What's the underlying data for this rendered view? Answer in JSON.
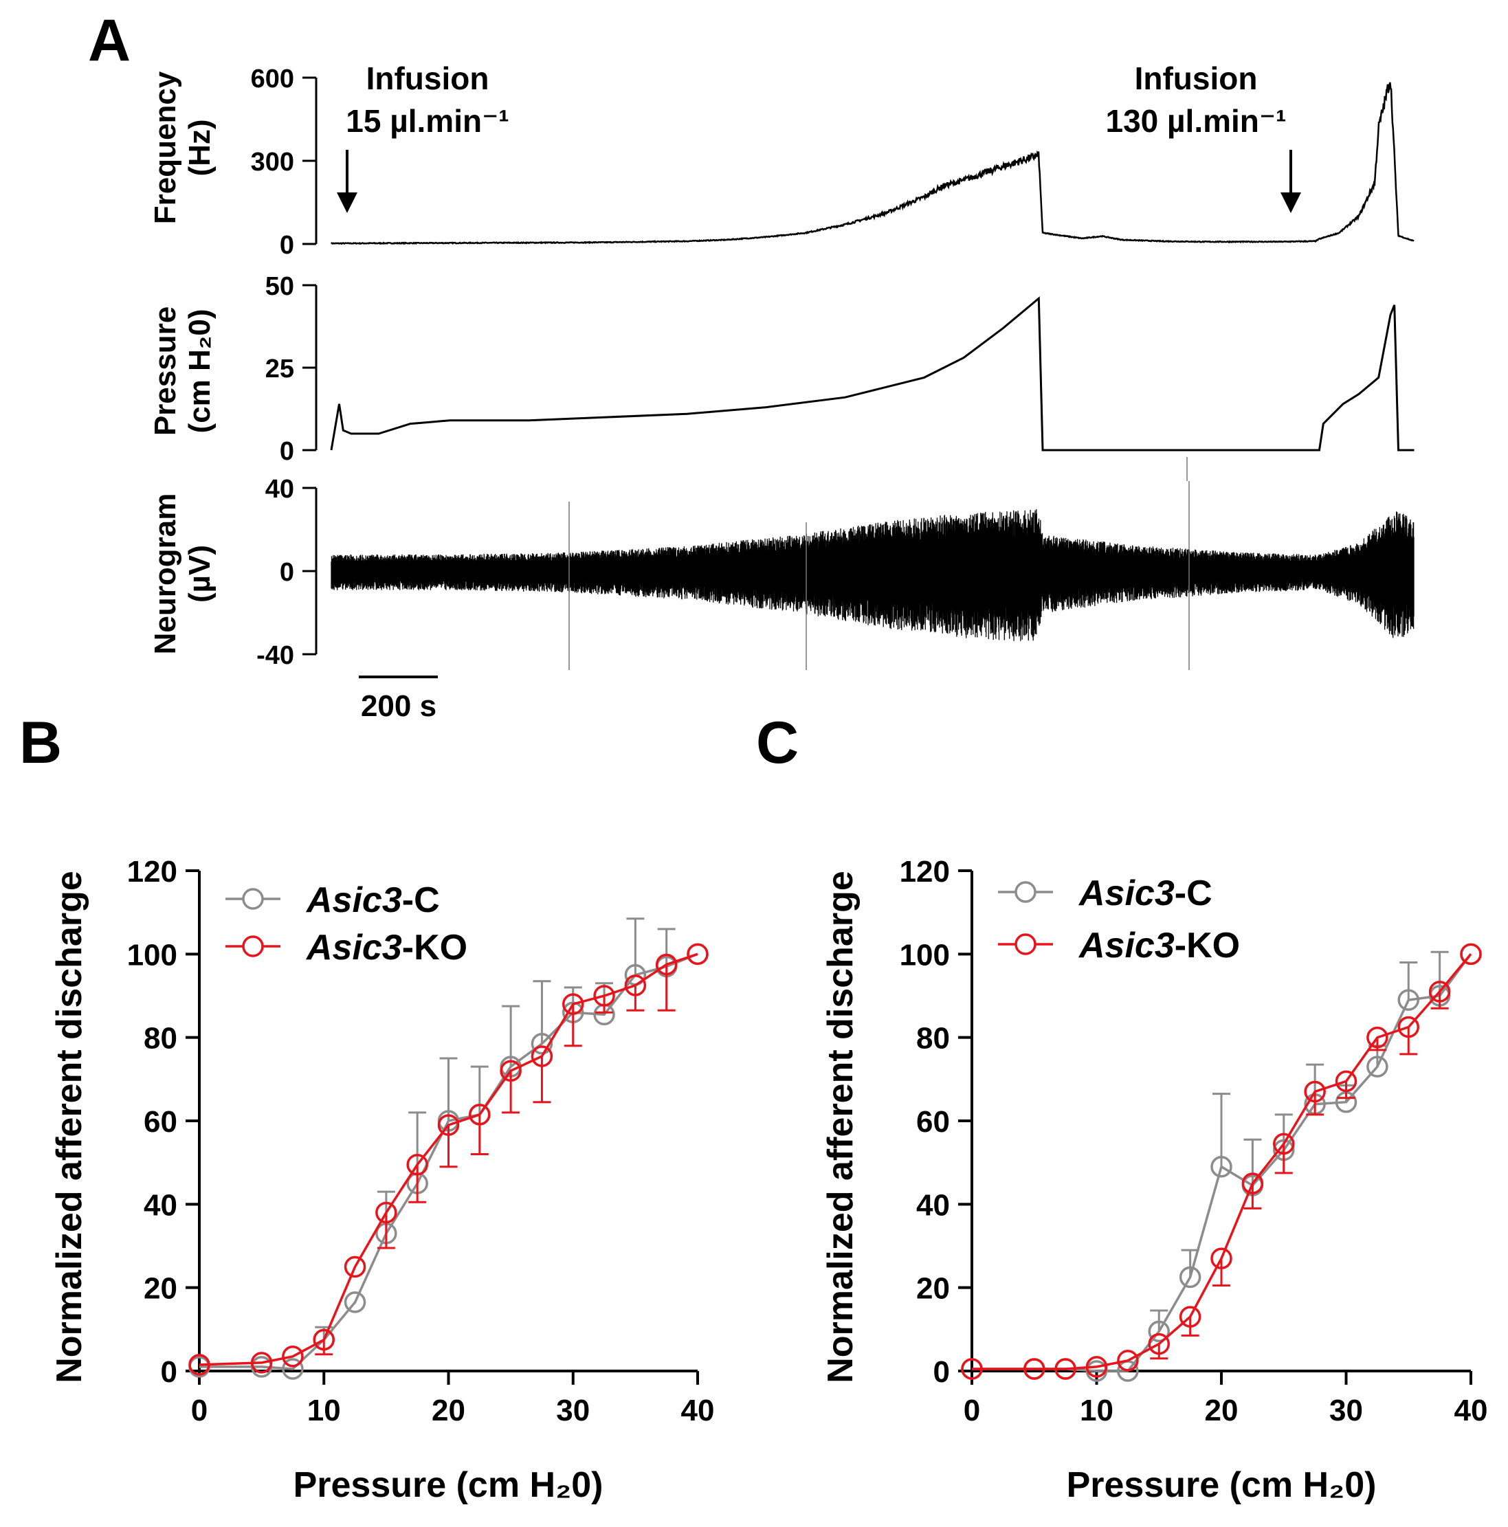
{
  "panels": {
    "a": "A",
    "b": "B",
    "c": "C"
  },
  "colors": {
    "control": "#8c8c8c",
    "ko": "#e8141b",
    "trace": "#000000"
  },
  "chart_data": [
    {
      "type": "line",
      "panel": "A",
      "traces": [
        {
          "name": "frequency",
          "ylabel": [
            "Frequency",
            "(Hz)"
          ],
          "ylim": [
            0,
            600
          ],
          "yticks": [
            "0",
            "300",
            "600"
          ],
          "x_seconds": [
            0,
            200,
            400,
            600,
            700,
            800,
            900,
            1000,
            1100,
            1200,
            1300,
            1400,
            1500,
            1550,
            1600,
            1650,
            1700,
            1790,
            1800,
            1900,
            1950,
            2000,
            2100,
            2200,
            2300,
            2400,
            2490,
            2500,
            2550,
            2600,
            2640,
            2650,
            2680,
            2700,
            2740
          ],
          "y": [
            2,
            3,
            4,
            5,
            6,
            8,
            10,
            15,
            25,
            40,
            70,
            110,
            170,
            210,
            230,
            255,
            280,
            320,
            40,
            20,
            28,
            15,
            10,
            8,
            8,
            8,
            10,
            18,
            40,
            100,
            220,
            420,
            600,
            30,
            10
          ]
        },
        {
          "name": "pressure",
          "ylabel": [
            "Pressure",
            "(cm H₂0)"
          ],
          "ylim": [
            0,
            50
          ],
          "yticks": [
            "0",
            "25",
            "50"
          ],
          "x_seconds": [
            0,
            20,
            30,
            50,
            120,
            200,
            300,
            500,
            700,
            900,
            1100,
            1300,
            1400,
            1500,
            1600,
            1700,
            1790,
            1800,
            2090,
            2500,
            2510,
            2560,
            2600,
            2650,
            2680,
            2690,
            2700,
            2740
          ],
          "y": [
            0,
            14,
            6,
            5,
            5,
            8,
            9,
            9,
            10,
            11,
            13,
            16,
            19,
            22,
            28,
            37,
            46,
            0,
            0,
            0,
            8,
            14,
            17,
            22,
            41,
            44,
            0,
            0
          ]
        },
        {
          "name": "neurogram",
          "ylabel": [
            "Neurogram",
            "(µV)"
          ],
          "ylim": [
            -40,
            40
          ],
          "yticks": [
            "-40",
            "0",
            "40"
          ],
          "envelope_x_seconds": [
            0,
            300,
            600,
            900,
            1200,
            1400,
            1600,
            1790,
            1800,
            2000,
            2300,
            2500,
            2600,
            2680,
            2700,
            2740
          ],
          "envelope_amplitude": [
            8,
            8,
            9,
            12,
            18,
            24,
            28,
            30,
            18,
            13,
            9,
            8,
            14,
            27,
            30,
            24
          ]
        }
      ],
      "annotations": [
        {
          "line1": "Infusion",
          "line2": "15 µl.min⁻¹",
          "x_seconds": 30
        },
        {
          "line1": "Infusion",
          "line2": "130 µl.min⁻¹",
          "x_seconds": 2490
        }
      ],
      "scalebar": {
        "label": "200 s",
        "seconds": 200
      }
    },
    {
      "type": "line",
      "panel": "B",
      "xlabel": "Pressure (cm H₂0)",
      "ylabel": "Normalized afferent discharge",
      "xlim": [
        0,
        40
      ],
      "ylim": [
        0,
        120
      ],
      "xticks": [
        0,
        10,
        20,
        30,
        40
      ],
      "yticks": [
        0,
        20,
        40,
        60,
        80,
        100,
        120
      ],
      "legend": "top-left",
      "series": [
        {
          "name": "Asic3-C",
          "name_parts": [
            "Asic3",
            "-C"
          ],
          "color": "control",
          "x": [
            0,
            5,
            7.5,
            10,
            12.5,
            15,
            17.5,
            20,
            22.5,
            25,
            27.5,
            30,
            32.5,
            35,
            37.5,
            40
          ],
          "y": [
            1,
            1,
            0.5,
            7.5,
            16.5,
            33,
            45,
            60,
            61.5,
            73,
            78.5,
            86,
            85.5,
            95,
            97,
            100
          ],
          "err": [
            0,
            0,
            0,
            3,
            0,
            10,
            17,
            15,
            11.5,
            14.5,
            15,
            6,
            7.5,
            13.5,
            9,
            0
          ],
          "err_dir": "up"
        },
        {
          "name": "Asic3-KO",
          "name_parts": [
            "Asic3",
            "-KO"
          ],
          "color": "ko",
          "x": [
            0,
            5,
            7.5,
            10,
            12.5,
            15,
            17.5,
            20,
            22.5,
            25,
            27.5,
            30,
            32.5,
            35,
            37.5,
            40
          ],
          "y": [
            1.5,
            2,
            3.5,
            7.5,
            25,
            38,
            49.5,
            59,
            61.5,
            72,
            75.5,
            88,
            90,
            92.5,
            97.5,
            100
          ],
          "err": [
            0,
            0,
            0,
            3.5,
            0,
            8.5,
            9,
            10,
            9.5,
            10,
            11,
            10,
            4,
            6,
            11,
            0
          ],
          "err_dir": "down"
        }
      ]
    },
    {
      "type": "line",
      "panel": "C",
      "xlabel": "Pressure (cm H₂0)",
      "ylabel": "Normalized afferent discharge",
      "xlim": [
        0,
        40
      ],
      "ylim": [
        0,
        120
      ],
      "xticks": [
        0,
        10,
        20,
        30,
        40
      ],
      "yticks": [
        0,
        20,
        40,
        60,
        80,
        100,
        120
      ],
      "legend": "top-left",
      "series": [
        {
          "name": "Asic3-C",
          "name_parts": [
            "Asic3",
            "-C"
          ],
          "color": "control",
          "x": [
            0,
            5,
            7.5,
            10,
            12.5,
            15,
            17.5,
            20,
            22.5,
            25,
            27.5,
            30,
            32.5,
            35,
            37.5,
            40
          ],
          "y": [
            0.5,
            0.5,
            0.5,
            0,
            0,
            9.5,
            22.5,
            49,
            44.5,
            53,
            64,
            64.5,
            73,
            89,
            90,
            100
          ],
          "err": [
            0,
            0,
            0,
            0,
            0,
            5,
            6.5,
            17.5,
            11,
            8.5,
            9.5,
            4,
            5,
            9,
            10.5,
            0
          ],
          "err_dir": "up"
        },
        {
          "name": "Asic3-KO",
          "name_parts": [
            "Asic3",
            "-KO"
          ],
          "color": "ko",
          "x": [
            0,
            5,
            7.5,
            10,
            12.5,
            15,
            17.5,
            20,
            22.5,
            25,
            27.5,
            30,
            32.5,
            35,
            37.5,
            40
          ],
          "y": [
            0.5,
            0.5,
            0.5,
            1,
            2.5,
            6.5,
            13,
            27,
            45,
            54.5,
            67,
            69.5,
            80,
            82.5,
            91,
            100
          ],
          "err": [
            0,
            0,
            0,
            0,
            0,
            3.5,
            4.5,
            6.5,
            6,
            7,
            5.5,
            4,
            3,
            6.5,
            4,
            0
          ],
          "err_dir": "down"
        }
      ]
    }
  ]
}
